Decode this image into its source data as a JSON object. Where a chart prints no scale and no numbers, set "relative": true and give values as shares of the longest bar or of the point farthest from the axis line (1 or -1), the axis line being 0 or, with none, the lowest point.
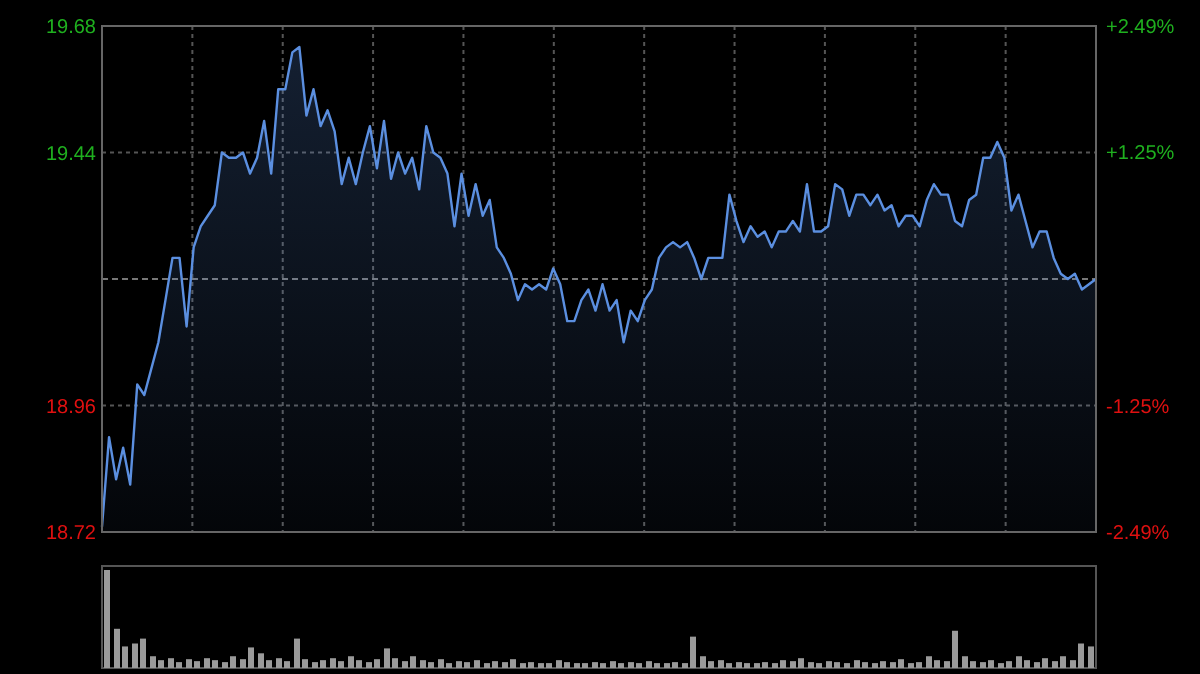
{
  "chart_data": [
    {
      "type": "area",
      "categories": [
        null,
        null,
        null,
        null,
        null,
        null,
        null,
        null,
        null,
        null,
        null,
        null,
        null,
        null,
        null,
        null,
        null,
        null,
        null,
        null,
        null,
        null,
        null,
        null,
        null,
        null,
        null,
        null,
        null,
        null,
        null,
        null,
        null,
        null,
        null,
        null,
        null,
        null,
        null,
        null,
        null,
        null,
        null,
        null,
        null,
        null,
        null,
        null,
        null,
        null,
        null,
        null,
        null,
        null,
        null,
        null,
        null,
        null,
        null,
        null,
        null,
        null,
        null,
        null,
        null,
        null,
        null,
        null,
        null,
        null,
        null,
        null,
        null,
        null,
        null,
        null,
        null,
        null,
        null,
        null,
        null,
        null,
        null,
        null,
        null,
        null,
        null,
        null,
        null,
        null,
        null,
        null,
        null,
        null,
        null,
        null,
        null,
        null,
        null,
        null,
        null,
        null,
        null,
        null,
        null,
        null,
        null,
        null,
        null,
        null,
        null,
        null,
        null,
        null,
        null,
        null,
        null,
        null,
        null,
        null,
        null,
        null,
        null,
        null,
        null,
        null,
        null,
        null,
        null,
        null,
        null,
        null,
        null,
        null,
        null,
        null,
        null,
        null,
        null,
        null,
        null,
        null
      ],
      "series": [
        {
          "color": "#5b8fe0",
          "values": [
            18.73,
            18.9,
            18.82,
            18.88,
            18.81,
            19.0,
            18.98,
            19.03,
            19.08,
            19.16,
            19.24,
            19.24,
            19.11,
            19.26,
            19.3,
            19.32,
            19.34,
            19.44,
            19.43,
            19.43,
            19.44,
            19.4,
            19.43,
            19.5,
            19.4,
            19.56,
            19.56,
            19.63,
            19.64,
            19.51,
            19.56,
            19.49,
            19.52,
            19.48,
            19.38,
            19.43,
            19.38,
            19.44,
            19.49,
            19.41,
            19.5,
            19.39,
            19.44,
            19.4,
            19.43,
            19.37,
            19.49,
            19.44,
            19.43,
            19.4,
            19.3,
            19.4,
            19.32,
            19.38,
            19.32,
            19.35,
            19.26,
            19.24,
            19.21,
            19.16,
            19.19,
            19.18,
            19.19,
            19.18,
            19.22,
            19.19,
            19.12,
            19.12,
            19.16,
            19.18,
            19.14,
            19.19,
            19.14,
            19.16,
            19.08,
            19.14,
            19.12,
            19.16,
            19.18,
            19.24,
            19.26,
            19.27,
            19.26,
            19.27,
            19.24,
            19.2,
            19.24,
            19.24,
            19.24,
            19.36,
            19.31,
            19.27,
            19.3,
            19.28,
            19.29,
            19.26,
            19.29,
            19.29,
            19.31,
            19.29,
            19.38,
            19.29,
            19.29,
            19.3,
            19.38,
            19.37,
            19.32,
            19.36,
            19.36,
            19.34,
            19.36,
            19.33,
            19.34,
            19.3,
            19.32,
            19.32,
            19.3,
            19.35,
            19.38,
            19.36,
            19.36,
            19.31,
            19.3,
            19.35,
            19.36,
            19.43,
            19.43,
            19.46,
            19.43,
            19.33,
            19.36,
            19.31,
            19.26,
            19.29,
            19.29,
            19.24,
            19.21,
            19.2,
            19.21,
            19.18,
            19.19,
            19.2
          ]
        }
      ],
      "ylim": [
        18.72,
        19.68
      ],
      "yticks": [
        18.72,
        18.96,
        19.44,
        19.68
      ],
      "y2lim": [
        -2.49,
        2.49
      ],
      "y2ticks": [
        {
          "value": -2.49,
          "label": "-2.49%"
        },
        {
          "value": -1.25,
          "label": "-1.25%"
        },
        {
          "value": 1.25,
          "label": "+1.25%"
        },
        {
          "value": 2.49,
          "label": "+2.49%"
        }
      ],
      "ref_lines": [
        {
          "axis": "y",
          "value": 19.2,
          "label": null,
          "line_style": "dashed"
        }
      ],
      "grid": true
    },
    {
      "type": "bar",
      "relative": true,
      "color": "#9a9a9a",
      "categories": [
        null,
        null,
        null,
        null,
        null,
        null,
        null,
        null,
        null,
        null,
        null,
        null,
        null,
        null,
        null,
        null,
        null,
        null,
        null,
        null,
        null,
        null,
        null,
        null,
        null,
        null,
        null,
        null,
        null,
        null,
        null,
        null,
        null,
        null,
        null,
        null,
        null,
        null,
        null,
        null,
        null,
        null,
        null,
        null,
        null,
        null,
        null,
        null,
        null,
        null,
        null,
        null,
        null,
        null,
        null,
        null,
        null,
        null,
        null,
        null,
        null,
        null,
        null,
        null,
        null,
        null,
        null,
        null,
        null,
        null,
        null,
        null,
        null,
        null,
        null,
        null,
        null,
        null,
        null,
        null,
        null,
        null,
        null,
        null,
        null,
        null,
        null,
        null,
        null,
        null,
        null,
        null,
        null,
        null,
        null,
        null,
        null,
        null,
        null,
        null,
        null,
        null,
        null,
        null,
        null,
        null,
        null,
        null,
        null,
        null
      ],
      "values": [
        1.0,
        0.4,
        0.22,
        0.25,
        0.3,
        0.12,
        0.08,
        0.1,
        0.06,
        0.09,
        0.07,
        0.1,
        0.08,
        0.06,
        0.12,
        0.09,
        0.21,
        0.15,
        0.08,
        0.1,
        0.07,
        0.3,
        0.09,
        0.06,
        0.08,
        0.1,
        0.07,
        0.12,
        0.08,
        0.06,
        0.09,
        0.2,
        0.1,
        0.07,
        0.12,
        0.08,
        0.06,
        0.09,
        0.05,
        0.07,
        0.06,
        0.08,
        0.05,
        0.07,
        0.06,
        0.09,
        0.05,
        0.06,
        0.05,
        0.05,
        0.08,
        0.06,
        0.05,
        0.05,
        0.06,
        0.05,
        0.07,
        0.05,
        0.06,
        0.05,
        0.07,
        0.05,
        0.05,
        0.06,
        0.05,
        0.32,
        0.12,
        0.07,
        0.08,
        0.05,
        0.06,
        0.05,
        0.05,
        0.06,
        0.05,
        0.08,
        0.07,
        0.1,
        0.06,
        0.05,
        0.07,
        0.06,
        0.05,
        0.08,
        0.06,
        0.05,
        0.07,
        0.06,
        0.09,
        0.05,
        0.06,
        0.12,
        0.08,
        0.07,
        0.38,
        0.12,
        0.07,
        0.06,
        0.08,
        0.05,
        0.07,
        0.12,
        0.08,
        0.06,
        0.1,
        0.07,
        0.12,
        0.08,
        0.25,
        0.22
      ]
    }
  ]
}
